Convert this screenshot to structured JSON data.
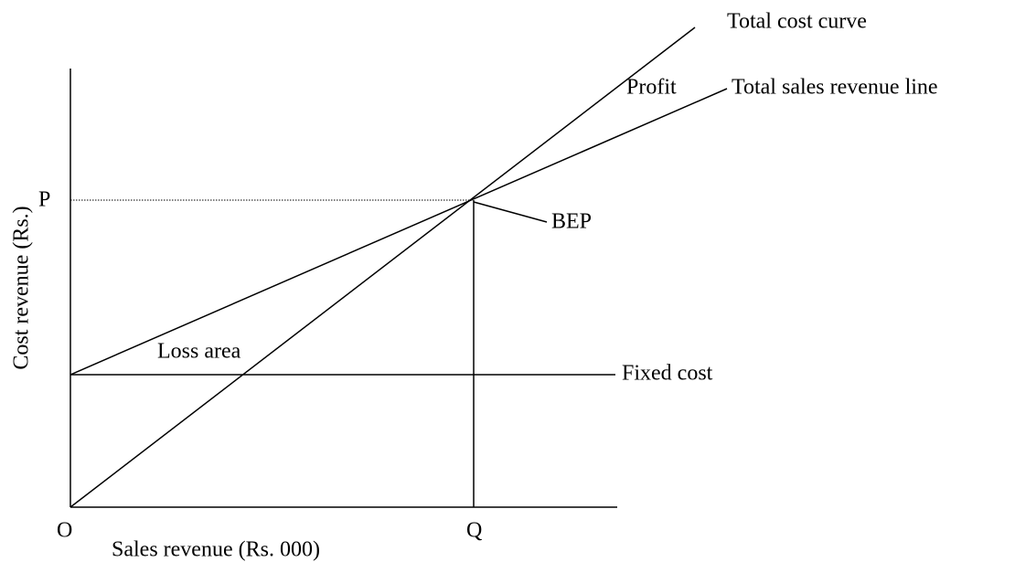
{
  "labels": {
    "total_cost": "Total cost curve",
    "profit": "Profit",
    "total_sales": "Total sales revenue line",
    "p": "P",
    "bep": "BEP",
    "y_axis": "Cost revenue (Rs.)",
    "loss_area": "Loss area",
    "fixed_cost": "Fixed cost",
    "origin": "O",
    "q": "Q",
    "x_axis": "Sales revenue (Rs. 000)"
  }
}
